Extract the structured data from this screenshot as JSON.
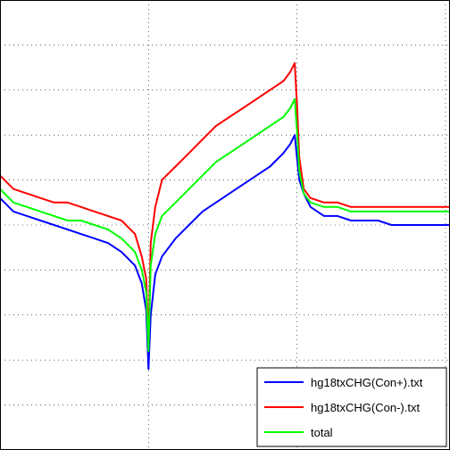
{
  "chart_data": {
    "type": "line",
    "title": "",
    "xlabel": "",
    "ylabel": "",
    "xlim": [
      0,
      1000
    ],
    "ylim": [
      0,
      100
    ],
    "grid": true,
    "legend_position": "bottom-right",
    "x_gridlines": [
      330,
      660,
      990
    ],
    "y_gridlines": [
      10,
      20,
      30,
      40,
      50,
      60,
      70,
      80,
      90
    ],
    "x": [
      0,
      30,
      60,
      90,
      120,
      150,
      180,
      210,
      240,
      270,
      300,
      315,
      325,
      330,
      335,
      345,
      360,
      390,
      420,
      450,
      480,
      510,
      540,
      570,
      600,
      630,
      645,
      655,
      660,
      665,
      675,
      690,
      720,
      750,
      780,
      810,
      840,
      870,
      900,
      930,
      960,
      990,
      1000
    ],
    "series": [
      {
        "name": "hg18txCHG(Con+).txt",
        "color": "#0000ff",
        "values": [
          56,
          53,
          52,
          51,
          50,
          49,
          48,
          47,
          46,
          44,
          41,
          37,
          31,
          18,
          30,
          39,
          43,
          47,
          50,
          53,
          55,
          57,
          59,
          61,
          63,
          66,
          68,
          70,
          65,
          60,
          57,
          54,
          52,
          52,
          51,
          51,
          51,
          50,
          50,
          50,
          50,
          50,
          50
        ]
      },
      {
        "name": "hg18txCHG(Con-).txt",
        "color": "#ff0000",
        "values": [
          61,
          58,
          57,
          56,
          55,
          55,
          54,
          53,
          52,
          51,
          48,
          43,
          38,
          24,
          46,
          54,
          60,
          63,
          66,
          69,
          72,
          74,
          76,
          78,
          80,
          82,
          84,
          86,
          77,
          65,
          58,
          56,
          55,
          55,
          54,
          54,
          54,
          54,
          54,
          54,
          54,
          54,
          54
        ]
      },
      {
        "name": "total",
        "color": "#00ff00",
        "values": [
          58,
          55,
          54,
          53,
          52,
          51,
          51,
          50,
          49,
          47,
          44,
          40,
          35,
          22,
          41,
          48,
          52,
          55,
          58,
          61,
          64,
          66,
          68,
          70,
          72,
          74,
          76,
          78,
          71,
          62,
          57,
          55,
          54,
          54,
          53,
          53,
          53,
          53,
          53,
          53,
          53,
          53,
          53
        ]
      }
    ]
  }
}
